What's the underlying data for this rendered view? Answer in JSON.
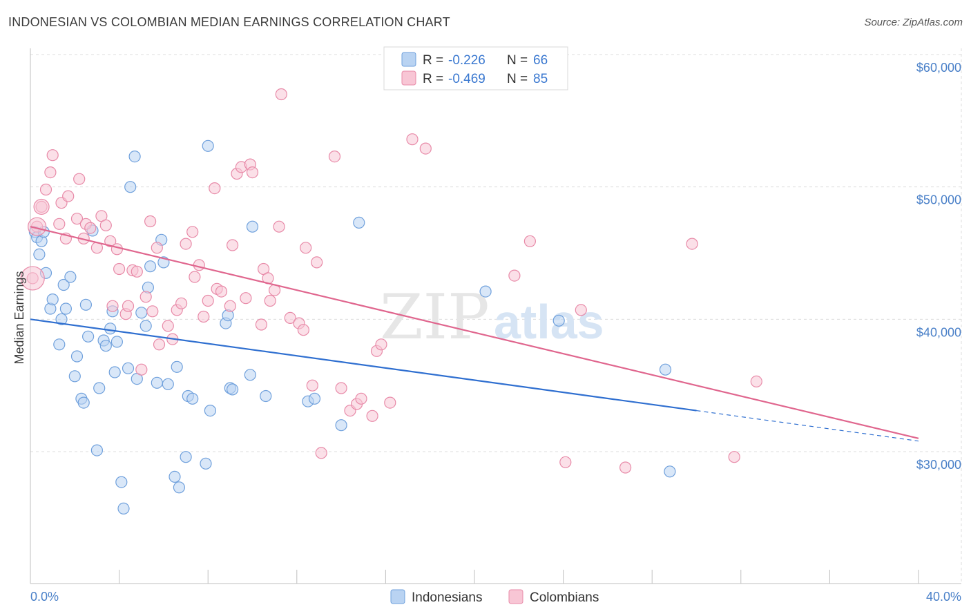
{
  "header": {
    "title": "INDONESIAN VS COLOMBIAN MEDIAN EARNINGS CORRELATION CHART",
    "source": "Source: ZipAtlas.com"
  },
  "watermark": {
    "left": "ZIP",
    "right": "atlas"
  },
  "legend": {
    "r_label": "R =",
    "n_label": "N =",
    "rows": [
      {
        "r": "-0.226",
        "n": "66",
        "color": "#a9c9f0"
      },
      {
        "r": "-0.469",
        "n": "85",
        "color": "#f6b9cc"
      }
    ]
  },
  "chart_data": {
    "type": "scatter",
    "ylabel": "Median Earnings",
    "xlim": [
      0,
      0.4
    ],
    "ylim": [
      20000,
      61000
    ],
    "x_tick_labels": [
      "0.0%",
      "40.0%"
    ],
    "y_ticks": [
      30000,
      40000,
      50000,
      60000
    ],
    "y_tick_labels": [
      "$30,000",
      "$40,000",
      "$50,000",
      "$60,000"
    ],
    "grid": true,
    "series": [
      {
        "name": "Indonesians",
        "color": "#6fa0dc",
        "fill": "#b9d3f2",
        "trend": {
          "x0": 0.0,
          "y0": 40000,
          "x1": 0.3,
          "y1": 33100,
          "dash_to_x": 0.4,
          "dash_to_y": 30800,
          "line_color": "#2f6fd0"
        },
        "points": [
          [
            0.002,
            46600
          ],
          [
            0.003,
            46200
          ],
          [
            0.005,
            45900
          ],
          [
            0.004,
            44900
          ],
          [
            0.006,
            46600
          ],
          [
            0.007,
            43500
          ],
          [
            0.009,
            40800
          ],
          [
            0.01,
            41500
          ],
          [
            0.013,
            38100
          ],
          [
            0.014,
            40000
          ],
          [
            0.015,
            42600
          ],
          [
            0.016,
            40800
          ],
          [
            0.018,
            43200
          ],
          [
            0.02,
            35700
          ],
          [
            0.021,
            37200
          ],
          [
            0.023,
            34000
          ],
          [
            0.024,
            33700
          ],
          [
            0.025,
            41100
          ],
          [
            0.026,
            38700
          ],
          [
            0.028,
            46700
          ],
          [
            0.03,
            30100
          ],
          [
            0.031,
            34800
          ],
          [
            0.033,
            38400
          ],
          [
            0.034,
            38000
          ],
          [
            0.036,
            39300
          ],
          [
            0.037,
            40600
          ],
          [
            0.038,
            36000
          ],
          [
            0.039,
            38300
          ],
          [
            0.041,
            27700
          ],
          [
            0.042,
            25700
          ],
          [
            0.044,
            36300
          ],
          [
            0.045,
            50000
          ],
          [
            0.047,
            52300
          ],
          [
            0.048,
            35500
          ],
          [
            0.05,
            40500
          ],
          [
            0.052,
            39500
          ],
          [
            0.053,
            42400
          ],
          [
            0.054,
            44000
          ],
          [
            0.057,
            35200
          ],
          [
            0.059,
            46000
          ],
          [
            0.06,
            44300
          ],
          [
            0.062,
            35100
          ],
          [
            0.065,
            28100
          ],
          [
            0.066,
            36400
          ],
          [
            0.067,
            27300
          ],
          [
            0.07,
            29600
          ],
          [
            0.071,
            34200
          ],
          [
            0.073,
            34000
          ],
          [
            0.079,
            29100
          ],
          [
            0.08,
            53100
          ],
          [
            0.081,
            33100
          ],
          [
            0.088,
            39700
          ],
          [
            0.089,
            40300
          ],
          [
            0.09,
            34800
          ],
          [
            0.091,
            34700
          ],
          [
            0.099,
            35800
          ],
          [
            0.1,
            47000
          ],
          [
            0.106,
            34200
          ],
          [
            0.125,
            33800
          ],
          [
            0.128,
            34000
          ],
          [
            0.14,
            32000
          ],
          [
            0.148,
            47300
          ],
          [
            0.205,
            42100
          ],
          [
            0.238,
            39900
          ],
          [
            0.286,
            36200
          ],
          [
            0.288,
            28500
          ]
        ]
      },
      {
        "name": "Colombians",
        "color": "#e88aa8",
        "fill": "#f8c6d5",
        "trend": {
          "x0": 0.0,
          "y0": 47000,
          "x1": 0.4,
          "y1": 31000,
          "line_color": "#e0668e"
        },
        "points": [
          [
            0.001,
            43100
          ],
          [
            0.003,
            47000
          ],
          [
            0.005,
            48500
          ],
          [
            0.007,
            49800
          ],
          [
            0.009,
            51100
          ],
          [
            0.01,
            52400
          ],
          [
            0.013,
            47200
          ],
          [
            0.014,
            48800
          ],
          [
            0.016,
            46100
          ],
          [
            0.017,
            49300
          ],
          [
            0.021,
            47600
          ],
          [
            0.022,
            50600
          ],
          [
            0.024,
            46100
          ],
          [
            0.025,
            47200
          ],
          [
            0.027,
            46900
          ],
          [
            0.03,
            45400
          ],
          [
            0.032,
            47800
          ],
          [
            0.034,
            47100
          ],
          [
            0.036,
            45900
          ],
          [
            0.037,
            41000
          ],
          [
            0.039,
            45300
          ],
          [
            0.04,
            43800
          ],
          [
            0.043,
            40400
          ],
          [
            0.044,
            41000
          ],
          [
            0.046,
            43700
          ],
          [
            0.048,
            43600
          ],
          [
            0.05,
            36200
          ],
          [
            0.052,
            41700
          ],
          [
            0.054,
            47400
          ],
          [
            0.055,
            40600
          ],
          [
            0.057,
            45400
          ],
          [
            0.058,
            38100
          ],
          [
            0.062,
            39500
          ],
          [
            0.064,
            38500
          ],
          [
            0.066,
            40700
          ],
          [
            0.068,
            41200
          ],
          [
            0.07,
            45700
          ],
          [
            0.073,
            46600
          ],
          [
            0.074,
            43200
          ],
          [
            0.076,
            44100
          ],
          [
            0.078,
            40200
          ],
          [
            0.08,
            41400
          ],
          [
            0.083,
            49900
          ],
          [
            0.084,
            42300
          ],
          [
            0.086,
            42100
          ],
          [
            0.09,
            41000
          ],
          [
            0.091,
            45600
          ],
          [
            0.093,
            51000
          ],
          [
            0.095,
            51500
          ],
          [
            0.097,
            41600
          ],
          [
            0.099,
            51700
          ],
          [
            0.1,
            51100
          ],
          [
            0.104,
            39600
          ],
          [
            0.105,
            43800
          ],
          [
            0.107,
            43100
          ],
          [
            0.108,
            41400
          ],
          [
            0.11,
            42200
          ],
          [
            0.112,
            47000
          ],
          [
            0.113,
            57000
          ],
          [
            0.117,
            40100
          ],
          [
            0.121,
            39700
          ],
          [
            0.123,
            39200
          ],
          [
            0.124,
            45400
          ],
          [
            0.127,
            35000
          ],
          [
            0.129,
            44300
          ],
          [
            0.131,
            29900
          ],
          [
            0.137,
            52300
          ],
          [
            0.14,
            34800
          ],
          [
            0.144,
            33100
          ],
          [
            0.147,
            33600
          ],
          [
            0.149,
            34000
          ],
          [
            0.154,
            32700
          ],
          [
            0.156,
            37600
          ],
          [
            0.158,
            38100
          ],
          [
            0.162,
            33700
          ],
          [
            0.172,
            53600
          ],
          [
            0.178,
            52900
          ],
          [
            0.218,
            43300
          ],
          [
            0.225,
            45900
          ],
          [
            0.241,
            29200
          ],
          [
            0.248,
            40700
          ],
          [
            0.268,
            28800
          ],
          [
            0.298,
            45700
          ],
          [
            0.317,
            29600
          ],
          [
            0.327,
            35300
          ]
        ]
      }
    ]
  },
  "bottom_legend": {
    "items": [
      "Indonesians",
      "Colombians"
    ]
  }
}
